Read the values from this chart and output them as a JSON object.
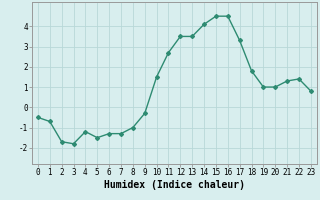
{
  "x": [
    0,
    1,
    2,
    3,
    4,
    5,
    6,
    7,
    8,
    9,
    10,
    11,
    12,
    13,
    14,
    15,
    16,
    17,
    18,
    19,
    20,
    21,
    22,
    23
  ],
  "y": [
    -0.5,
    -0.7,
    -1.7,
    -1.8,
    -1.2,
    -1.5,
    -1.3,
    -1.3,
    -1.0,
    -0.3,
    1.5,
    2.7,
    3.5,
    3.5,
    4.1,
    4.5,
    4.5,
    3.3,
    1.8,
    1.0,
    1.0,
    1.3,
    1.4,
    0.8
  ],
  "line_color": "#2e8b72",
  "marker": "D",
  "marker_size": 2.0,
  "bg_color": "#d8eeee",
  "grid_color": "#b8d8d8",
  "xlabel": "Humidex (Indice chaleur)",
  "xlabel_fontsize": 7,
  "tick_fontsize": 5.5,
  "ylim": [
    -2.8,
    5.2
  ],
  "xlim": [
    -0.5,
    23.5
  ],
  "yticks": [
    -2,
    -1,
    0,
    1,
    2,
    3,
    4
  ],
  "xticks": [
    0,
    1,
    2,
    3,
    4,
    5,
    6,
    7,
    8,
    9,
    10,
    11,
    12,
    13,
    14,
    15,
    16,
    17,
    18,
    19,
    20,
    21,
    22,
    23
  ],
  "line_width": 1.0,
  "font_family": "monospace"
}
